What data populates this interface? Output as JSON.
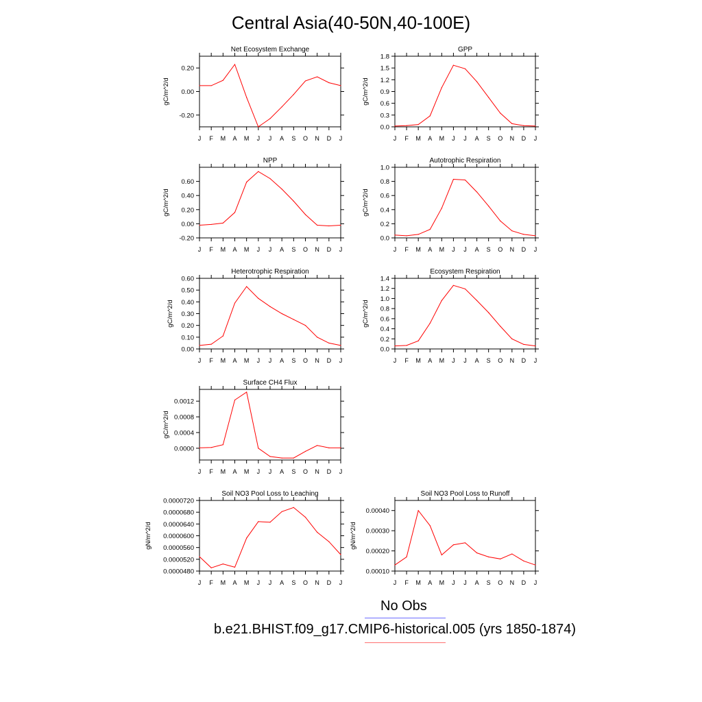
{
  "page": {
    "title": "Central Asia(40-50N,40-100E)"
  },
  "legend": {
    "obs_label": "No Obs",
    "obs_color": "#6b6bff",
    "model_label": "b.e21.BHIST.f09_g17.CMIP6-historical.005 (yrs 1850-1874)",
    "model_color": "#ff0000"
  },
  "chart_data": [
    {
      "type": "line",
      "title": "Net Ecosystem Exchange",
      "ylabel": "gC/m^2/d",
      "categories": [
        "J",
        "F",
        "M",
        "A",
        "M",
        "J",
        "J",
        "A",
        "S",
        "O",
        "N",
        "D",
        "J"
      ],
      "ylim": [
        -0.3,
        0.3
      ],
      "yticks": [
        -0.2,
        0.0,
        0.2
      ],
      "ytick_labels": [
        "-0.20",
        "0.00",
        "0.20"
      ],
      "series": [
        {
          "values": [
            0.05,
            0.05,
            0.095,
            0.23,
            -0.05,
            -0.3,
            -0.23,
            -0.13,
            -0.025,
            0.09,
            0.125,
            0.075,
            0.05
          ]
        }
      ]
    },
    {
      "type": "line",
      "title": "GPP",
      "ylabel": "gC/m^2/d",
      "categories": [
        "J",
        "F",
        "M",
        "A",
        "M",
        "J",
        "J",
        "A",
        "S",
        "O",
        "N",
        "D",
        "J"
      ],
      "ylim": [
        0.0,
        1.8
      ],
      "yticks": [
        0.0,
        0.3,
        0.6,
        0.9,
        1.2,
        1.5,
        1.8
      ],
      "ytick_labels": [
        "0.0",
        "0.3",
        "0.6",
        "0.9",
        "1.2",
        "1.5",
        "1.8"
      ],
      "series": [
        {
          "values": [
            0.02,
            0.03,
            0.06,
            0.28,
            1.0,
            1.57,
            1.48,
            1.15,
            0.75,
            0.35,
            0.08,
            0.03,
            0.02
          ]
        }
      ]
    },
    {
      "type": "line",
      "title": "NPP",
      "ylabel": "gC/m^2/d",
      "categories": [
        "J",
        "F",
        "M",
        "A",
        "M",
        "J",
        "J",
        "A",
        "S",
        "O",
        "N",
        "D",
        "J"
      ],
      "ylim": [
        -0.2,
        0.8
      ],
      "yticks": [
        -0.2,
        0.0,
        0.2,
        0.4,
        0.6
      ],
      "ytick_labels": [
        "-0.20",
        "0.00",
        "0.20",
        "0.40",
        "0.60"
      ],
      "series": [
        {
          "values": [
            -0.02,
            -0.01,
            0.01,
            0.16,
            0.59,
            0.74,
            0.64,
            0.49,
            0.32,
            0.13,
            -0.02,
            -0.03,
            -0.02
          ]
        }
      ]
    },
    {
      "type": "line",
      "title": "Autotrophic Respiration",
      "ylabel": "gC/m^2/d",
      "categories": [
        "J",
        "F",
        "M",
        "A",
        "M",
        "J",
        "J",
        "A",
        "S",
        "O",
        "N",
        "D",
        "J"
      ],
      "ylim": [
        0.0,
        1.0
      ],
      "yticks": [
        0.0,
        0.2,
        0.4,
        0.6,
        0.8,
        1.0
      ],
      "ytick_labels": [
        "0.0",
        "0.2",
        "0.4",
        "0.6",
        "0.8",
        "1.0"
      ],
      "series": [
        {
          "values": [
            0.04,
            0.03,
            0.05,
            0.12,
            0.42,
            0.83,
            0.82,
            0.65,
            0.45,
            0.24,
            0.1,
            0.05,
            0.03
          ]
        }
      ]
    },
    {
      "type": "line",
      "title": "Heterotrophic Respiration",
      "ylabel": "gC/m^2/d",
      "categories": [
        "J",
        "F",
        "M",
        "A",
        "M",
        "J",
        "J",
        "A",
        "S",
        "O",
        "N",
        "D",
        "J"
      ],
      "ylim": [
        0.0,
        0.6
      ],
      "yticks": [
        0.0,
        0.1,
        0.2,
        0.3,
        0.4,
        0.5,
        0.6
      ],
      "ytick_labels": [
        "0.00",
        "0.10",
        "0.20",
        "0.30",
        "0.40",
        "0.50",
        "0.60"
      ],
      "series": [
        {
          "values": [
            0.03,
            0.04,
            0.11,
            0.39,
            0.53,
            0.43,
            0.36,
            0.3,
            0.25,
            0.2,
            0.1,
            0.05,
            0.03
          ]
        }
      ]
    },
    {
      "type": "line",
      "title": "Ecosystem Respiration",
      "ylabel": "gC/m^2/d",
      "categories": [
        "J",
        "F",
        "M",
        "A",
        "M",
        "J",
        "J",
        "A",
        "S",
        "O",
        "N",
        "D",
        "J"
      ],
      "ylim": [
        0.0,
        1.4
      ],
      "yticks": [
        0.0,
        0.2,
        0.4,
        0.6,
        0.8,
        1.0,
        1.2,
        1.4
      ],
      "ytick_labels": [
        "0.0",
        "0.2",
        "0.4",
        "0.6",
        "0.8",
        "1.0",
        "1.2",
        "1.4"
      ],
      "series": [
        {
          "values": [
            0.06,
            0.07,
            0.16,
            0.51,
            0.96,
            1.26,
            1.19,
            0.96,
            0.72,
            0.45,
            0.2,
            0.09,
            0.06
          ]
        }
      ]
    },
    {
      "type": "line",
      "title": "Surface CH4 Flux",
      "ylabel": "gC/m^2/d",
      "categories": [
        "J",
        "F",
        "M",
        "A",
        "M",
        "J",
        "J",
        "A",
        "S",
        "O",
        "N",
        "D",
        "J"
      ],
      "ylim": [
        -0.0003,
        0.0015
      ],
      "yticks": [
        0.0,
        0.0004,
        0.0008,
        0.0012
      ],
      "ytick_labels": [
        "0.0000",
        "0.0004",
        "0.0008",
        "0.0012"
      ],
      "series": [
        {
          "values": [
            1e-05,
            2e-05,
            9e-05,
            0.00123,
            0.00143,
            0.0,
            -0.00021,
            -0.00025,
            -0.00025,
            -8e-05,
            7e-05,
            1e-05,
            1e-05
          ]
        }
      ]
    },
    {
      "type": "line",
      "title": "Soil NO3 Pool Loss to Leaching",
      "ylabel": "gN/m^2/d",
      "categories": [
        "J",
        "F",
        "M",
        "A",
        "M",
        "J",
        "J",
        "A",
        "S",
        "O",
        "N",
        "D",
        "J"
      ],
      "ylim": [
        4.8e-05,
        7.2e-05
      ],
      "yticks": [
        4.8e-05,
        5.2e-05,
        5.6e-05,
        6e-05,
        6.4e-05,
        6.8e-05,
        7.2e-05
      ],
      "ytick_labels": [
        "0.0000480",
        "0.0000520",
        "0.0000560",
        "0.0000600",
        "0.0000640",
        "0.0000680",
        "0.0000720"
      ],
      "series": [
        {
          "values": [
            5.29e-05,
            4.91e-05,
            5.04e-05,
            4.93e-05,
            5.92e-05,
            6.48e-05,
            6.46e-05,
            6.82e-05,
            6.96e-05,
            6.63e-05,
            6.12e-05,
            5.8e-05,
            5.36e-05
          ]
        }
      ]
    },
    {
      "type": "line",
      "title": "Soil NO3 Pool Loss to Runoff",
      "ylabel": "gN/m^2/d",
      "categories": [
        "J",
        "F",
        "M",
        "A",
        "M",
        "J",
        "J",
        "A",
        "S",
        "O",
        "N",
        "D",
        "J"
      ],
      "ylim": [
        0.0001,
        0.00045
      ],
      "yticks": [
        0.0001,
        0.0002,
        0.0003,
        0.0004
      ],
      "ytick_labels": [
        "0.00010",
        "0.00020",
        "0.00030",
        "0.00040"
      ],
      "series": [
        {
          "values": [
            0.00013,
            0.00017,
            0.0004,
            0.000325,
            0.00018,
            0.00023,
            0.00024,
            0.00019,
            0.00017,
            0.00016,
            0.000185,
            0.00015,
            0.00013
          ]
        }
      ]
    }
  ]
}
